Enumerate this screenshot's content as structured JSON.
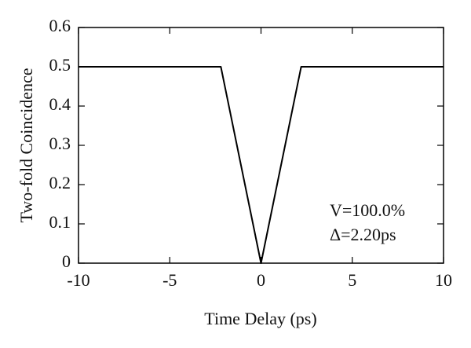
{
  "chart_data": {
    "type": "line",
    "xlabel": "Time Delay (ps)",
    "ylabel": "Two-fold Coincidence",
    "x": [
      -10,
      -2.2,
      0,
      2.2,
      10
    ],
    "series": [
      {
        "color": "#000000",
        "values": [
          0.5,
          0.5,
          0,
          0.5,
          0.5
        ]
      }
    ],
    "xlim": [
      -10,
      10
    ],
    "xticks": [
      -10,
      -5,
      0,
      5,
      10
    ],
    "ylim": [
      0,
      0.6
    ],
    "yticks": [
      0,
      0.1,
      0.2,
      0.3,
      0.4,
      0.5,
      0.6
    ],
    "annotations": [
      "V=100.0%",
      "Δ=2.20ps"
    ]
  }
}
